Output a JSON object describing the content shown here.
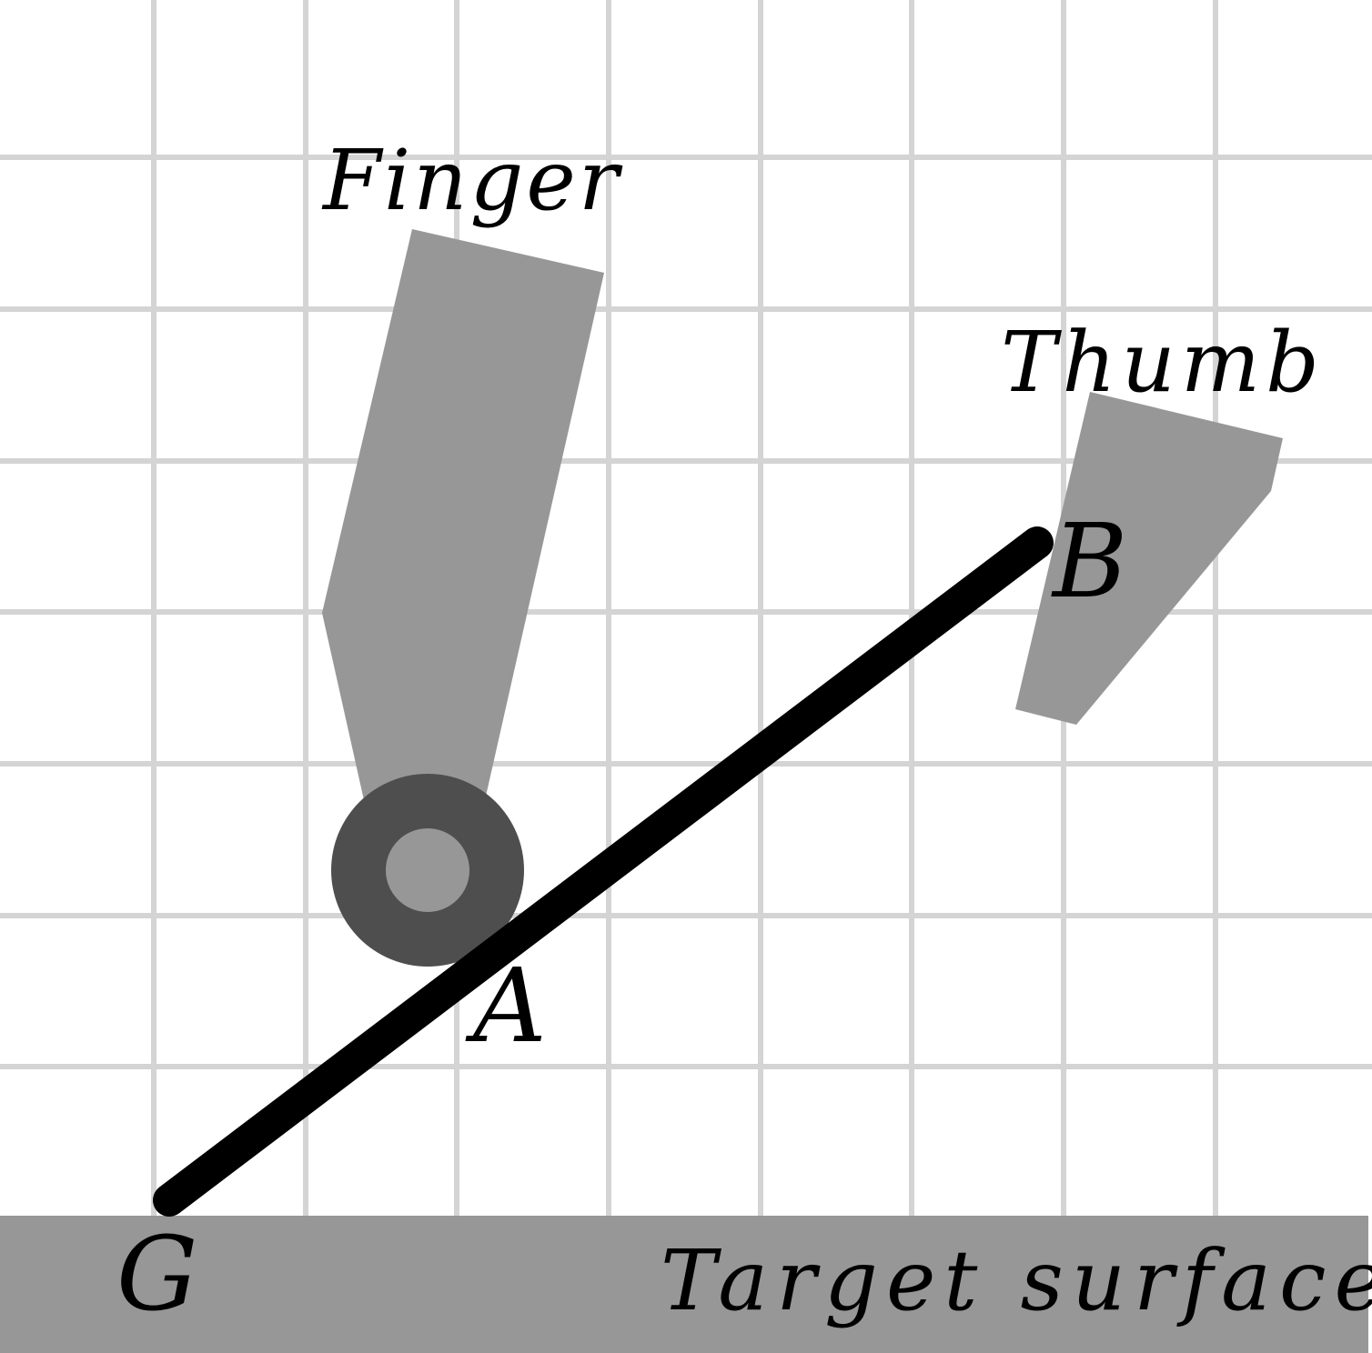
{
  "labels": {
    "finger": "Finger",
    "thumb": "Thumb",
    "point_a": "A",
    "point_b": "B",
    "point_g": "G",
    "surface": "Target surface"
  },
  "colors": {
    "background": "#ffffff",
    "grid": "#d4d4d4",
    "finger_fill": "#969796",
    "thumb_fill": "#969796",
    "pivot_outer": "#4e4e4e",
    "pivot_inner": "#969796",
    "rod": "#000000",
    "surface_fill": "#969796",
    "text": "#000000"
  }
}
